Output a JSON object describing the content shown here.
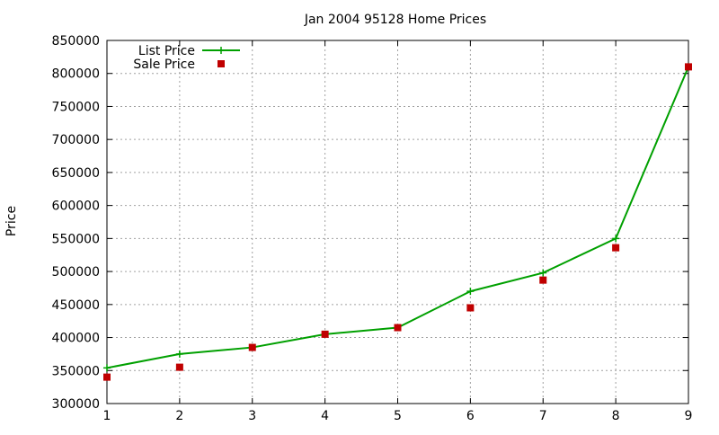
{
  "chart_data": {
    "type": "line",
    "title": "Jan 2004 95128 Home Prices",
    "xlabel": "",
    "ylabel": "Price",
    "xlim": [
      1,
      9
    ],
    "ylim": [
      300000,
      850000
    ],
    "x_ticks": [
      "1",
      "2",
      "3",
      "4",
      "5",
      "6",
      "7",
      "8",
      "9"
    ],
    "y_ticks": [
      "300000",
      "350000",
      "400000",
      "450000",
      "500000",
      "550000",
      "600000",
      "650000",
      "700000",
      "750000",
      "800000",
      "850000"
    ],
    "grid": true,
    "legend_position": "top-left",
    "series": [
      {
        "name": "List Price",
        "style": "linespoints",
        "color": "#00a000",
        "x": [
          1,
          2,
          3,
          4,
          5,
          6,
          7,
          8,
          9
        ],
        "values": [
          354000,
          375000,
          385000,
          405000,
          415000,
          470000,
          498000,
          550000,
          810000
        ]
      },
      {
        "name": "Sale Price",
        "style": "points",
        "color": "#c00000",
        "x": [
          1,
          2,
          3,
          4,
          5,
          6,
          7,
          8,
          9
        ],
        "values": [
          340000,
          355000,
          385000,
          405000,
          415000,
          445000,
          487000,
          536000,
          810000
        ]
      }
    ]
  }
}
